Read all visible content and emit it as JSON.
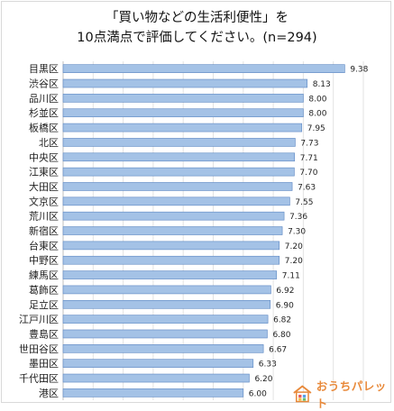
{
  "chart_data": {
    "type": "bar",
    "orientation": "horizontal",
    "title_line1": "「買い物などの生活利便性」を",
    "title_line2": "10点満点で評価してください。(n=294)",
    "categories": [
      "目黒区",
      "渋谷区",
      "品川区",
      "杉並区",
      "板橋区",
      "北区",
      "中央区",
      "江東区",
      "大田区",
      "文京区",
      "荒川区",
      "新宿区",
      "台東区",
      "中野区",
      "練馬区",
      "葛飾区",
      "足立区",
      "江戸川区",
      "豊島区",
      "世田谷区",
      "墨田区",
      "千代田区",
      "港区"
    ],
    "values": [
      9.38,
      8.13,
      8.0,
      8.0,
      7.95,
      7.73,
      7.71,
      7.7,
      7.63,
      7.55,
      7.36,
      7.3,
      7.2,
      7.2,
      7.11,
      6.92,
      6.9,
      6.82,
      6.8,
      6.67,
      6.33,
      6.2,
      6.0
    ],
    "value_labels": [
      "9.38",
      "8.13",
      "8.00",
      "8.00",
      "7.95",
      "7.73",
      "7.71",
      "7.70",
      "7.63",
      "7.55",
      "7.36",
      "7.30",
      "7.20",
      "7.20",
      "7.11",
      "6.92",
      "6.90",
      "6.82",
      "6.80",
      "6.67",
      "6.33",
      "6.20",
      "6.00"
    ],
    "grid": true,
    "bar_color": "#a4c2e6",
    "bar_edge": "#5b86c2"
  },
  "logo": {
    "text": "おうちパレット",
    "color": "#e8893a",
    "icon": "house-icon"
  }
}
